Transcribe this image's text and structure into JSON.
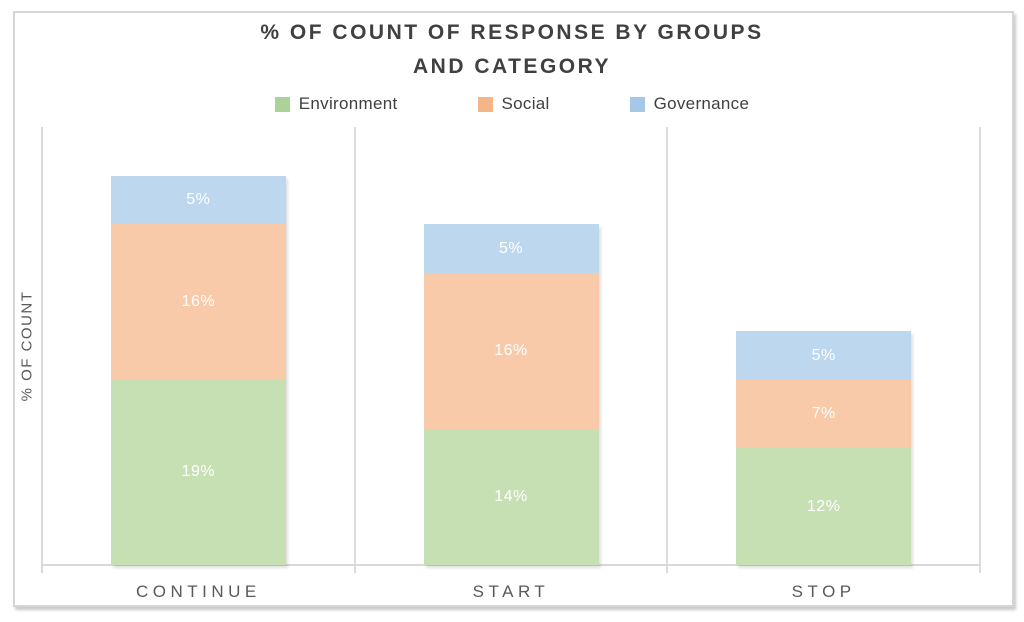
{
  "chart_data": {
    "type": "bar",
    "stacked": true,
    "title": "% OF COUNT OF RESPONSE BY GROUPS AND CATEGORY",
    "title_lines": [
      "% OF COUNT OF RESPONSE BY GROUPS",
      "AND CATEGORY"
    ],
    "ylabel": "% OF COUNT",
    "xlabel": "",
    "categories": [
      "CONTINUE",
      "START",
      "STOP"
    ],
    "series": [
      {
        "name": "Environment",
        "values": [
          19,
          14,
          12
        ],
        "labels": [
          "19%",
          "14%",
          "12%"
        ],
        "legend_color": "#aad398",
        "bar_color": "#c6e0b4"
      },
      {
        "name": "Social",
        "values": [
          16,
          16,
          7
        ],
        "labels": [
          "16%",
          "16%",
          "7%"
        ],
        "legend_color": "#f4b588",
        "bar_color": "#f8caaa"
      },
      {
        "name": "Governance",
        "values": [
          5,
          5,
          5
        ],
        "labels": [
          "5%",
          "5%",
          "5%"
        ],
        "legend_color": "#a6c8e8",
        "bar_color": "#bdd7ee"
      }
    ],
    "stack_order_bottom_to_top": [
      "Environment",
      "Social",
      "Governance"
    ],
    "ylim": [
      0,
      45
    ],
    "y_tick_labels_visible": false,
    "legend_position": "top",
    "gridlines": "vertical category separators only"
  },
  "colors": {
    "title_text": "#404040",
    "legend_text": "#404040",
    "axis_text": "#595959",
    "data_label_text": "#ffffff",
    "axis_line": "#d9d9d9",
    "gridline": "#dcdcdc",
    "frame_border": "#d5d5d5",
    "background": "#ffffff"
  }
}
